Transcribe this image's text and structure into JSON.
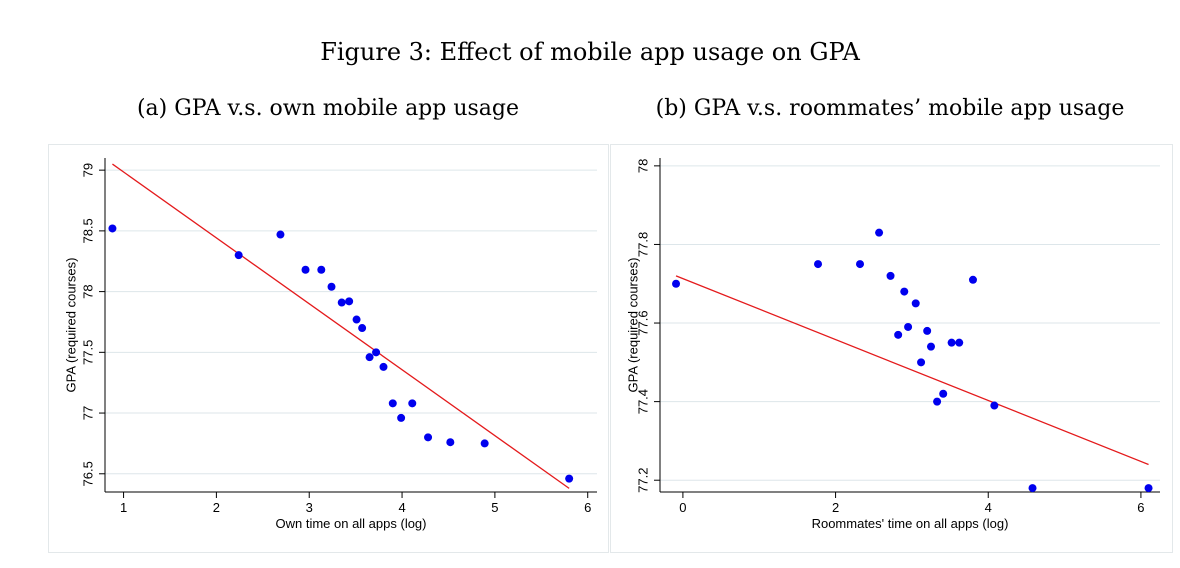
{
  "figure_title": "Figure 3: Effect of mobile app usage on GPA",
  "colors": {
    "points": "#0000ee",
    "fit_line": "#e41a1c",
    "grid": "#dde6ea",
    "frame": "#e3e8ea"
  },
  "chart_data": [
    {
      "type": "scatter",
      "title": "(a) GPA v.s. own mobile app usage",
      "xlabel": "Own time on all apps (log)",
      "ylabel": "GPA (required courses)",
      "xlim": [
        0.8,
        6.1
      ],
      "ylim": [
        76.35,
        79.1
      ],
      "xticks": [
        1,
        2,
        3,
        4,
        5,
        6
      ],
      "xtick_labels": [
        "1",
        "2",
        "3",
        "4",
        "5",
        "6"
      ],
      "yticks": [
        76.5,
        77,
        77.5,
        78,
        78.5,
        79
      ],
      "ytick_labels": [
        "76.5",
        "77",
        "77.5",
        "78",
        "78.5",
        "79"
      ],
      "grid": true,
      "points": [
        [
          0.88,
          78.52
        ],
        [
          2.24,
          78.3
        ],
        [
          2.69,
          78.47
        ],
        [
          2.96,
          78.18
        ],
        [
          3.13,
          78.18
        ],
        [
          3.24,
          78.04
        ],
        [
          3.35,
          77.91
        ],
        [
          3.43,
          77.92
        ],
        [
          3.51,
          77.77
        ],
        [
          3.57,
          77.7
        ],
        [
          3.65,
          77.46
        ],
        [
          3.72,
          77.5
        ],
        [
          3.8,
          77.38
        ],
        [
          3.9,
          77.08
        ],
        [
          3.99,
          76.96
        ],
        [
          4.11,
          77.08
        ],
        [
          4.28,
          76.8
        ],
        [
          4.52,
          76.76
        ],
        [
          4.89,
          76.75
        ],
        [
          5.8,
          76.46
        ]
      ],
      "fit_line": [
        [
          0.88,
          79.05
        ],
        [
          5.8,
          76.38
        ]
      ]
    },
    {
      "type": "scatter",
      "title": "(b) GPA v.s. roommates’ mobile app usage",
      "xlabel": "Roommates' time on all apps (log)",
      "ylabel": "GPA (required courses)",
      "xlim": [
        -0.3,
        6.25
      ],
      "ylim": [
        77.17,
        78.02
      ],
      "xticks": [
        0,
        2,
        4,
        6
      ],
      "xtick_labels": [
        "0",
        "2",
        "4",
        "6"
      ],
      "yticks": [
        77.2,
        77.4,
        77.6,
        77.8,
        78
      ],
      "ytick_labels": [
        "77.2",
        "77.4",
        "77.6",
        "77.8",
        "78"
      ],
      "grid": true,
      "points": [
        [
          -0.09,
          77.7
        ],
        [
          1.77,
          77.75
        ],
        [
          2.32,
          77.75
        ],
        [
          2.57,
          77.83
        ],
        [
          2.72,
          77.72
        ],
        [
          2.9,
          77.68
        ],
        [
          2.95,
          77.59
        ],
        [
          3.05,
          77.65
        ],
        [
          2.82,
          77.57
        ],
        [
          3.2,
          77.58
        ],
        [
          3.25,
          77.54
        ],
        [
          3.12,
          77.5
        ],
        [
          3.52,
          77.55
        ],
        [
          3.62,
          77.55
        ],
        [
          3.8,
          77.71
        ],
        [
          3.33,
          77.4
        ],
        [
          3.41,
          77.42
        ],
        [
          4.08,
          77.39
        ],
        [
          4.58,
          77.18
        ],
        [
          6.1,
          77.18
        ]
      ],
      "fit_line": [
        [
          -0.09,
          77.72
        ],
        [
          6.1,
          77.24
        ]
      ]
    }
  ]
}
